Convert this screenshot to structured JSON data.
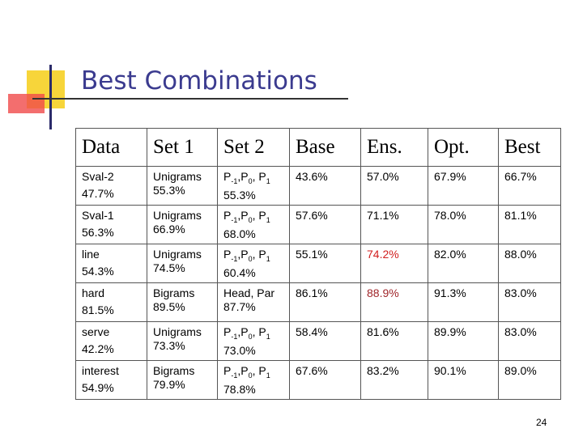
{
  "slide": {
    "title": "Best Combinations",
    "page_number": "24"
  },
  "table": {
    "header": [
      "Data",
      "Set 1",
      "Set 2",
      "Base",
      "Ens.",
      "Opt.",
      "Best"
    ],
    "rows": [
      [
        {
          "lines": [
            "Sval-2",
            "47.7%"
          ]
        },
        {
          "lines": [
            "Unigrams",
            "55.3%"
          ]
        },
        {
          "lines": [
            [
              {
                "text": "P"
              },
              {
                "sub": "-1"
              },
              {
                "text": ",P"
              },
              {
                "sub": "0"
              },
              {
                "text": ", P"
              },
              {
                "sub": "1"
              }
            ],
            "55.3%"
          ]
        },
        {
          "lines": [
            "43.6%"
          ]
        },
        {
          "lines": [
            "57.0%"
          ]
        },
        {
          "lines": [
            "67.9%"
          ]
        },
        {
          "lines": [
            "66.7%"
          ]
        }
      ],
      [
        {
          "lines": [
            "Sval-1",
            "56.3%"
          ]
        },
        {
          "lines": [
            "Unigrams",
            "66.9%"
          ]
        },
        {
          "lines": [
            [
              {
                "text": "P"
              },
              {
                "sub": "-1"
              },
              {
                "text": ",P"
              },
              {
                "sub": "0"
              },
              {
                "text": ", P"
              },
              {
                "sub": "1"
              }
            ],
            "68.0%"
          ]
        },
        {
          "lines": [
            "57.6%"
          ]
        },
        {
          "lines": [
            "71.1%"
          ]
        },
        {
          "lines": [
            "78.0%"
          ]
        },
        {
          "lines": [
            "81.1%"
          ]
        }
      ],
      [
        {
          "lines": [
            "line",
            "54.3%"
          ]
        },
        {
          "lines": [
            "Unigrams",
            "74.5%"
          ]
        },
        {
          "lines": [
            [
              {
                "text": "P"
              },
              {
                "sub": "-1"
              },
              {
                "text": ",P"
              },
              {
                "sub": "0"
              },
              {
                "text": ", P"
              },
              {
                "sub": "1"
              }
            ],
            "60.4%"
          ]
        },
        {
          "lines": [
            "55.1%"
          ]
        },
        {
          "lines": [
            "74.2%"
          ],
          "color": "#d21f1f"
        },
        {
          "lines": [
            "82.0%"
          ]
        },
        {
          "lines": [
            "88.0%"
          ]
        }
      ],
      [
        {
          "lines": [
            "hard",
            "81.5%"
          ]
        },
        {
          "lines": [
            "Bigrams",
            "89.5%"
          ]
        },
        {
          "lines": [
            "Head, Par",
            "87.7%"
          ]
        },
        {
          "lines": [
            "86.1%"
          ]
        },
        {
          "lines": [
            "88.9%"
          ],
          "color": "#a0262a"
        },
        {
          "lines": [
            "91.3%"
          ]
        },
        {
          "lines": [
            "83.0%"
          ]
        }
      ],
      [
        {
          "lines": [
            "serve",
            "42.2%"
          ]
        },
        {
          "lines": [
            "Unigrams",
            "73.3%"
          ]
        },
        {
          "lines": [
            [
              {
                "text": "P"
              },
              {
                "sub": "-1"
              },
              {
                "text": ",P"
              },
              {
                "sub": "0"
              },
              {
                "text": ", P"
              },
              {
                "sub": "1"
              }
            ],
            "73.0%"
          ]
        },
        {
          "lines": [
            "58.4%"
          ]
        },
        {
          "lines": [
            "81.6%"
          ]
        },
        {
          "lines": [
            "89.9%"
          ]
        },
        {
          "lines": [
            "83.0%"
          ]
        }
      ],
      [
        {
          "lines": [
            "interest",
            "54.9%"
          ]
        },
        {
          "lines": [
            "Bigrams",
            "79.9%"
          ]
        },
        {
          "lines": [
            [
              {
                "text": "P"
              },
              {
                "sub": "-1"
              },
              {
                "text": ",P"
              },
              {
                "sub": "0"
              },
              {
                "text": ", P"
              },
              {
                "sub": "1"
              }
            ],
            "78.8%"
          ]
        },
        {
          "lines": [
            "67.6%"
          ]
        },
        {
          "lines": [
            "83.2%"
          ]
        },
        {
          "lines": [
            "90.1%"
          ]
        },
        {
          "lines": [
            "89.0%"
          ]
        }
      ]
    ]
  }
}
